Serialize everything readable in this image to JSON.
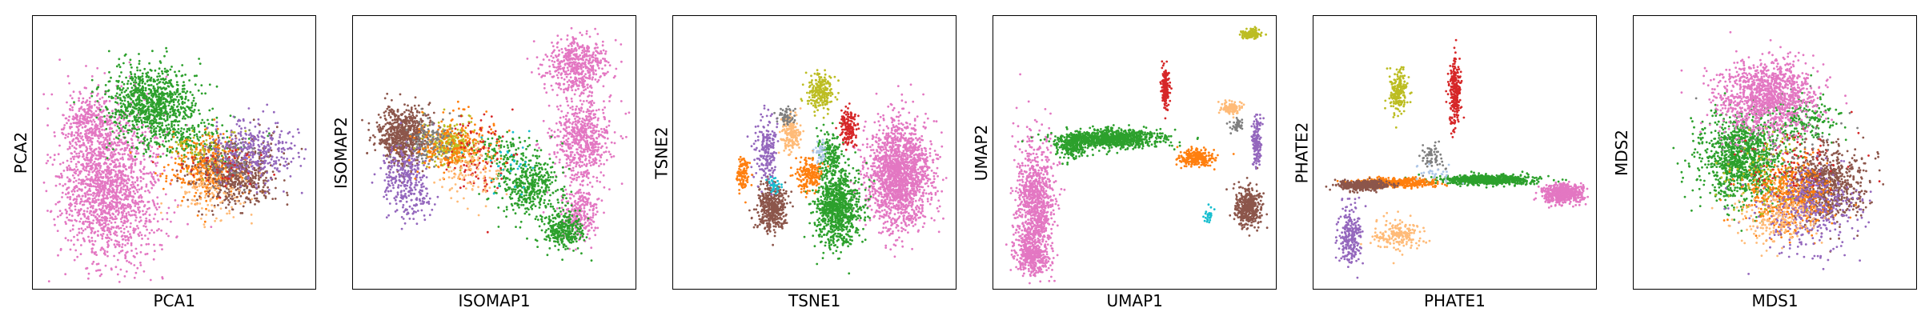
{
  "chart_data": [
    {
      "type": "scatter",
      "xlabel": "PCA1",
      "ylabel": "PCA2",
      "xlim": [
        0,
        1
      ],
      "ylim": [
        0,
        1
      ],
      "ticks": false,
      "grid": false,
      "series": [
        {
          "color": "#e377c2",
          "clusters": [
            [
              0.27,
              0.38,
              0.16,
              0.27,
              1700
            ],
            [
              0.2,
              0.6,
              0.08,
              0.1,
              250
            ]
          ]
        },
        {
          "color": "#2ca02c",
          "clusters": [
            [
              0.42,
              0.68,
              0.14,
              0.12,
              900
            ],
            [
              0.55,
              0.55,
              0.2,
              0.08,
              200
            ]
          ]
        },
        {
          "color": "#ff7f0e",
          "clusters": [
            [
              0.62,
              0.44,
              0.12,
              0.1,
              450
            ]
          ]
        },
        {
          "color": "#8c564b",
          "clusters": [
            [
              0.72,
              0.42,
              0.13,
              0.11,
              550
            ]
          ]
        },
        {
          "color": "#9467bd",
          "clusters": [
            [
              0.78,
              0.5,
              0.13,
              0.1,
              350
            ]
          ]
        },
        {
          "color": "#ffbb78",
          "clusters": [
            [
              0.62,
              0.36,
              0.12,
              0.1,
              120
            ]
          ]
        },
        {
          "color": "#7f7f7f",
          "clusters": [
            [
              0.68,
              0.46,
              0.1,
              0.08,
              70
            ]
          ]
        },
        {
          "color": "#bcbd22",
          "clusters": [
            [
              0.6,
              0.5,
              0.12,
              0.08,
              50
            ]
          ]
        },
        {
          "color": "#d62728",
          "clusters": [
            [
              0.64,
              0.44,
              0.14,
              0.1,
              40
            ]
          ]
        }
      ]
    },
    {
      "type": "scatter",
      "xlabel": "ISOMAP1",
      "ylabel": "ISOMAP2",
      "xlim": [
        0,
        1
      ],
      "ylim": [
        0,
        1
      ],
      "ticks": false,
      "grid": false,
      "series": [
        {
          "color": "#e377c2",
          "clusters": [
            [
              0.79,
              0.82,
              0.1,
              0.09,
              500
            ],
            [
              0.81,
              0.55,
              0.09,
              0.15,
              600
            ],
            [
              0.8,
              0.28,
              0.06,
              0.09,
              250
            ]
          ]
        },
        {
          "color": "#2ca02c",
          "clusters": [
            [
              0.62,
              0.38,
              0.1,
              0.09,
              400
            ],
            [
              0.74,
              0.22,
              0.07,
              0.07,
              300
            ],
            [
              0.52,
              0.5,
              0.1,
              0.06,
              100
            ]
          ]
        },
        {
          "color": "#8c564b",
          "clusters": [
            [
              0.18,
              0.56,
              0.08,
              0.09,
              700
            ]
          ]
        },
        {
          "color": "#9467bd",
          "clusters": [
            [
              0.18,
              0.42,
              0.08,
              0.1,
              250
            ],
            [
              0.22,
              0.32,
              0.08,
              0.07,
              80
            ]
          ]
        },
        {
          "color": "#bcbd22",
          "clusters": [
            [
              0.35,
              0.53,
              0.08,
              0.07,
              280
            ]
          ]
        },
        {
          "color": "#ff7f0e",
          "clusters": [
            [
              0.35,
              0.52,
              0.13,
              0.1,
              250
            ]
          ]
        },
        {
          "color": "#d62728",
          "clusters": [
            [
              0.45,
              0.48,
              0.1,
              0.12,
              100
            ]
          ]
        },
        {
          "color": "#ffbb78",
          "clusters": [
            [
              0.42,
              0.43,
              0.1,
              0.1,
              120
            ]
          ]
        },
        {
          "color": "#7f7f7f",
          "clusters": [
            [
              0.28,
              0.55,
              0.08,
              0.08,
              120
            ]
          ]
        },
        {
          "color": "#17becf",
          "clusters": [
            [
              0.55,
              0.45,
              0.1,
              0.1,
              30
            ]
          ]
        }
      ]
    },
    {
      "type": "scatter",
      "xlabel": "TSNE1",
      "ylabel": "TSNE2",
      "xlim": [
        0,
        1
      ],
      "ylim": [
        0,
        1
      ],
      "ticks": false,
      "grid": false,
      "series": [
        {
          "color": "#e377c2",
          "clusters": [
            [
              0.8,
              0.42,
              0.1,
              0.18,
              1700
            ]
          ]
        },
        {
          "color": "#2ca02c",
          "clusters": [
            [
              0.58,
              0.3,
              0.07,
              0.13,
              900
            ],
            [
              0.55,
              0.5,
              0.04,
              0.08,
              150
            ]
          ]
        },
        {
          "color": "#8c564b",
          "clusters": [
            [
              0.35,
              0.3,
              0.05,
              0.08,
              450
            ]
          ]
        },
        {
          "color": "#9467bd",
          "clusters": [
            [
              0.33,
              0.5,
              0.035,
              0.12,
              200
            ]
          ]
        },
        {
          "color": "#ff7f0e",
          "clusters": [
            [
              0.48,
              0.42,
              0.04,
              0.05,
              200
            ],
            [
              0.25,
              0.42,
              0.02,
              0.06,
              100
            ]
          ]
        },
        {
          "color": "#ffbb78",
          "clusters": [
            [
              0.42,
              0.57,
              0.035,
              0.06,
              180
            ]
          ]
        },
        {
          "color": "#bcbd22",
          "clusters": [
            [
              0.52,
              0.72,
              0.04,
              0.06,
              230
            ]
          ]
        },
        {
          "color": "#d62728",
          "clusters": [
            [
              0.62,
              0.59,
              0.028,
              0.06,
              150
            ]
          ]
        },
        {
          "color": "#7f7f7f",
          "clusters": [
            [
              0.4,
              0.63,
              0.025,
              0.03,
              60
            ]
          ]
        },
        {
          "color": "#aec7e8",
          "clusters": [
            [
              0.52,
              0.5,
              0.02,
              0.03,
              40
            ]
          ]
        },
        {
          "color": "#17becf",
          "clusters": [
            [
              0.36,
              0.38,
              0.02,
              0.03,
              30
            ]
          ]
        }
      ]
    },
    {
      "type": "scatter",
      "xlabel": "UMAP1",
      "ylabel": "UMAP2",
      "xlim": [
        0,
        1
      ],
      "ylim": [
        0,
        1
      ],
      "ticks": false,
      "grid": false,
      "series": [
        {
          "color": "#e377c2",
          "clusters": [
            [
              0.15,
              0.3,
              0.06,
              0.22,
              1000
            ],
            [
              0.14,
              0.12,
              0.05,
              0.05,
              300
            ]
          ]
        },
        {
          "color": "#2ca02c",
          "clusters": [
            [
              0.42,
              0.55,
              0.16,
              0.03,
              900
            ],
            [
              0.28,
              0.52,
              0.05,
              0.04,
              200
            ]
          ]
        },
        {
          "color": "#ff7f0e",
          "clusters": [
            [
              0.72,
              0.48,
              0.06,
              0.03,
              250
            ]
          ]
        },
        {
          "color": "#8c564b",
          "clusters": [
            [
              0.9,
              0.3,
              0.04,
              0.06,
              400
            ]
          ]
        },
        {
          "color": "#9467bd",
          "clusters": [
            [
              0.93,
              0.54,
              0.015,
              0.08,
              150
            ]
          ]
        },
        {
          "color": "#ffbb78",
          "clusters": [
            [
              0.84,
              0.66,
              0.03,
              0.02,
              120
            ]
          ]
        },
        {
          "color": "#d62728",
          "clusters": [
            [
              0.61,
              0.74,
              0.012,
              0.06,
              180
            ]
          ]
        },
        {
          "color": "#bcbd22",
          "clusters": [
            [
              0.91,
              0.93,
              0.03,
              0.015,
              150
            ]
          ]
        },
        {
          "color": "#7f7f7f",
          "clusters": [
            [
              0.86,
              0.6,
              0.02,
              0.02,
              40
            ]
          ]
        },
        {
          "color": "#17becf",
          "clusters": [
            [
              0.76,
              0.27,
              0.015,
              0.03,
              30
            ]
          ]
        }
      ]
    },
    {
      "type": "scatter",
      "xlabel": "PHATE1",
      "ylabel": "PHATE2",
      "xlim": [
        0,
        1
      ],
      "ylim": [
        0,
        1
      ],
      "ticks": false,
      "grid": false,
      "series": [
        {
          "color": "#e377c2",
          "clusters": [
            [
              0.88,
              0.35,
              0.06,
              0.03,
              600
            ]
          ]
        },
        {
          "color": "#2ca02c",
          "clusters": [
            [
              0.62,
              0.4,
              0.15,
              0.015,
              700
            ]
          ]
        },
        {
          "color": "#ff7f0e",
          "clusters": [
            [
              0.3,
              0.39,
              0.12,
              0.015,
              400
            ]
          ]
        },
        {
          "color": "#8c564b",
          "clusters": [
            [
              0.18,
              0.38,
              0.08,
              0.015,
              450
            ]
          ]
        },
        {
          "color": "#9467bd",
          "clusters": [
            [
              0.13,
              0.2,
              0.04,
              0.1,
              250
            ]
          ]
        },
        {
          "color": "#ffbb78",
          "clusters": [
            [
              0.3,
              0.2,
              0.07,
              0.05,
              200
            ]
          ]
        },
        {
          "color": "#bcbd22",
          "clusters": [
            [
              0.3,
              0.72,
              0.03,
              0.07,
              200
            ]
          ]
        },
        {
          "color": "#d62728",
          "clusters": [
            [
              0.5,
              0.72,
              0.02,
              0.12,
              250
            ]
          ]
        },
        {
          "color": "#7f7f7f",
          "clusters": [
            [
              0.42,
              0.48,
              0.04,
              0.04,
              60
            ]
          ]
        },
        {
          "color": "#aec7e8",
          "clusters": [
            [
              0.45,
              0.42,
              0.05,
              0.03,
              30
            ]
          ]
        }
      ]
    },
    {
      "type": "scatter",
      "xlabel": "MDS1",
      "ylabel": "MDS2",
      "xlim": [
        0,
        1
      ],
      "ylim": [
        0,
        1
      ],
      "ticks": false,
      "grid": false,
      "series": [
        {
          "color": "#2ca02c",
          "clusters": [
            [
              0.38,
              0.48,
              0.13,
              0.14,
              1100
            ],
            [
              0.6,
              0.62,
              0.12,
              0.08,
              200
            ]
          ]
        },
        {
          "color": "#8c564b",
          "clusters": [
            [
              0.68,
              0.38,
              0.12,
              0.12,
              800
            ]
          ]
        },
        {
          "color": "#ff7f0e",
          "clusters": [
            [
              0.55,
              0.34,
              0.14,
              0.12,
              500
            ]
          ]
        },
        {
          "color": "#9467bd",
          "clusters": [
            [
              0.62,
              0.3,
              0.16,
              0.14,
              400
            ]
          ]
        },
        {
          "color": "#ffbb78",
          "clusters": [
            [
              0.5,
              0.26,
              0.14,
              0.1,
              200
            ]
          ]
        },
        {
          "color": "#bcbd22",
          "clusters": [
            [
              0.45,
              0.42,
              0.16,
              0.14,
              80
            ]
          ]
        },
        {
          "color": "#d62728",
          "clusters": [
            [
              0.55,
              0.45,
              0.18,
              0.15,
              80
            ]
          ]
        },
        {
          "color": "#7f7f7f",
          "clusters": [
            [
              0.52,
              0.55,
              0.18,
              0.15,
              60
            ]
          ]
        },
        {
          "color": "#e377c2",
          "clusters": [
            [
              0.47,
              0.7,
              0.16,
              0.12,
              1200
            ]
          ]
        }
      ]
    }
  ]
}
